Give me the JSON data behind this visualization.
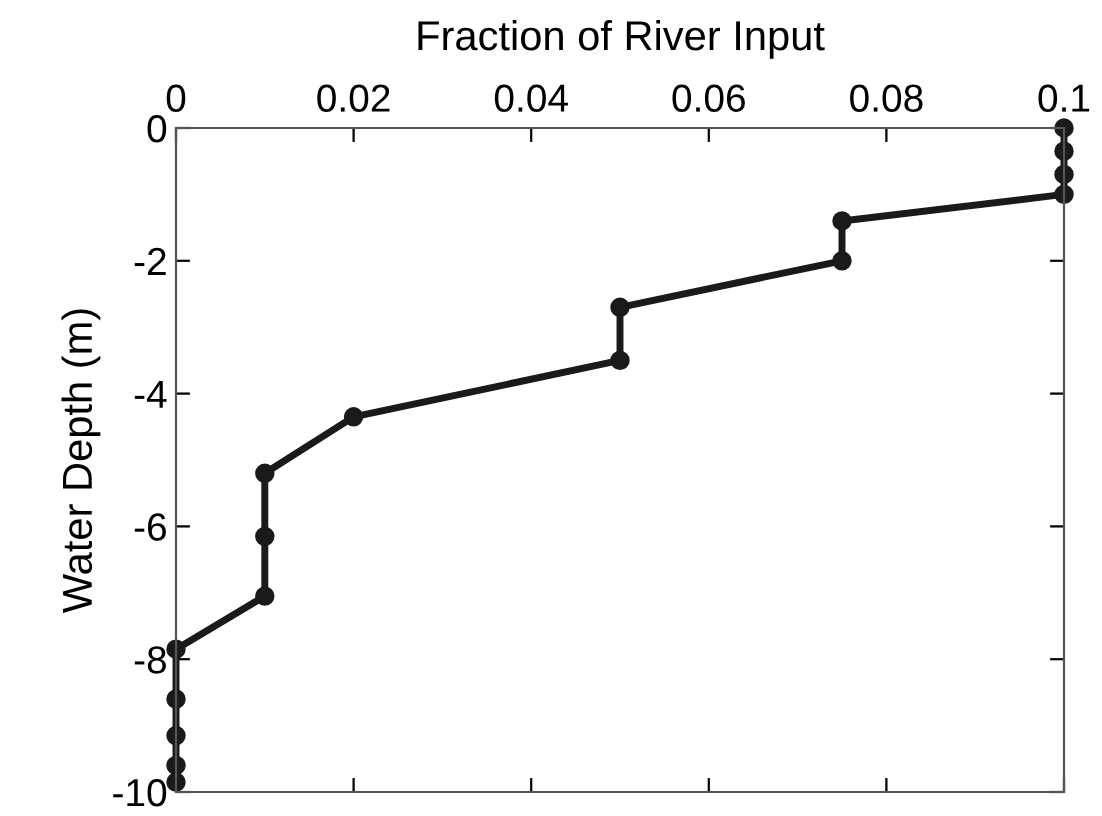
{
  "chart_data": {
    "type": "line",
    "xlabel": "Fraction of River Input",
    "ylabel": "Water Depth (m)",
    "x": [
      0.1,
      0.1,
      0.1,
      0.1,
      0.075,
      0.075,
      0.05,
      0.05,
      0.02,
      0.01,
      0.01,
      0.01,
      0,
      0,
      0,
      0,
      0
    ],
    "series": [
      {
        "color": "#1a1a1a",
        "values": [
          0,
          -0.35,
          -0.7,
          -1.0,
          -1.4,
          -2.0,
          -2.7,
          -3.5,
          -4.35,
          -5.2,
          -6.15,
          -7.05,
          -7.85,
          -8.6,
          -9.15,
          -9.6,
          -9.85
        ]
      }
    ],
    "xlim": [
      0,
      0.1
    ],
    "xticks": [
      0,
      0.02,
      0.04,
      0.06,
      0.08,
      0.1
    ],
    "ylim": [
      -10,
      0
    ],
    "yticks": [
      -10,
      -8,
      -6,
      -4,
      -2,
      0
    ],
    "marker": "circle",
    "line_style": "solid",
    "grid": false
  }
}
